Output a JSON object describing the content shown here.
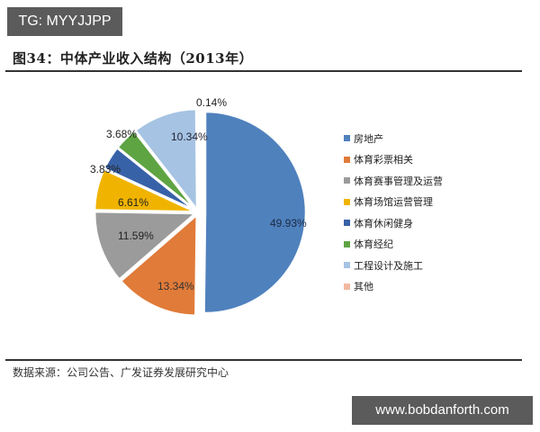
{
  "watermark_top": "TG: MYYJJPP",
  "watermark_bottom": "www.bobdanforth.com",
  "figure_title": "图34：中体产业收入结构（2013年）",
  "source": "数据来源：公司公告、广发证券发展研究中心",
  "chart_data": {
    "type": "pie",
    "title": "图34：中体产业收入结构（2013年）",
    "categories": [
      "房地产",
      "体育彩票相关",
      "体育赛事管理及运营",
      "体育场馆运营管理",
      "体育休闲健身",
      "体育经纪",
      "工程设计及施工",
      "其他"
    ],
    "values": [
      49.93,
      13.34,
      11.59,
      6.61,
      3.83,
      3.68,
      10.34,
      0.14
    ],
    "labels": [
      "49.93%",
      "13.34%",
      "11.59%",
      "6.61%",
      "3.83%",
      "3.68%",
      "10.34%",
      "0.14%"
    ],
    "colors": [
      "#4f81bd",
      "#e07b39",
      "#9b9b9b",
      "#f0b400",
      "#3862a8",
      "#5ea443",
      "#a6c3e3",
      "#f2b8a0"
    ],
    "legend_position": "right",
    "exploded": [
      0
    ]
  },
  "legend": [
    {
      "label": "房地产",
      "color": "#4f81bd"
    },
    {
      "label": "体育彩票相关",
      "color": "#e07b39"
    },
    {
      "label": "体育赛事管理及运营",
      "color": "#9b9b9b"
    },
    {
      "label": "体育场馆运营管理",
      "color": "#f0b400"
    },
    {
      "label": "体育休闲健身",
      "color": "#3862a8"
    },
    {
      "label": "体育经纪",
      "color": "#5ea443"
    },
    {
      "label": "工程设计及施工",
      "color": "#a6c3e3"
    },
    {
      "label": "其他",
      "color": "#f2b8a0"
    }
  ]
}
